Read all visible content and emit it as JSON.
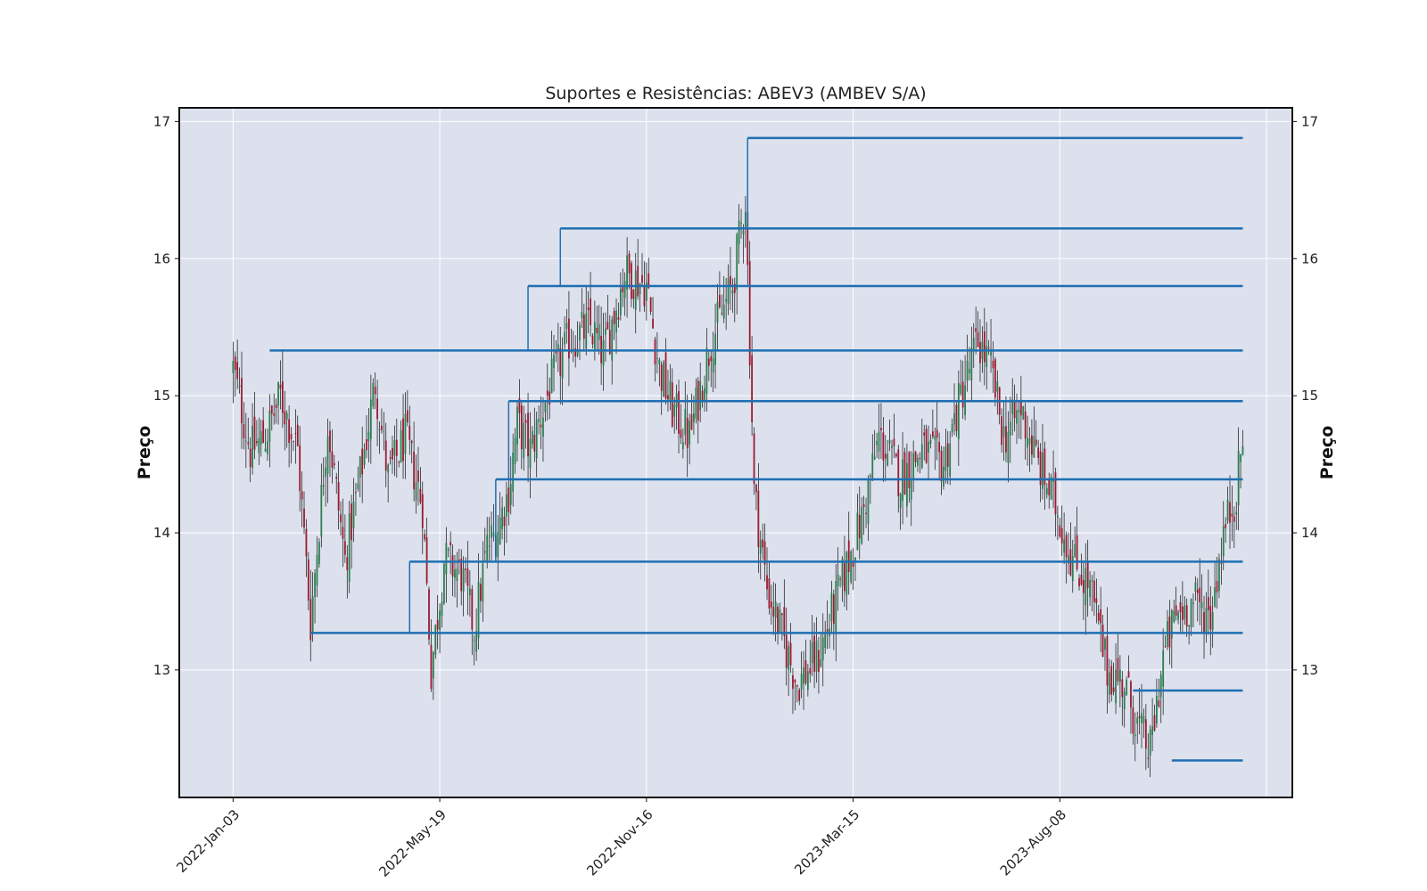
{
  "chart_data": {
    "type": "candlestick",
    "title": "Suportes e Resistências: ABEV3 (AMBEV S/A)",
    "ylabel_left": "Preço",
    "ylabel_right": "Preço",
    "xlabel": "",
    "ylim": [
      12.07,
      17.1
    ],
    "x_tick_labels": [
      "2022-Jan-03",
      "2022-May-19",
      "2022-Nov-16",
      "2023-Mar-15",
      "2023-Aug-08"
    ],
    "x_tick_index": [
      0,
      96,
      192,
      288,
      384
    ],
    "x_range": [
      -25,
      492
    ],
    "y_ticks": [
      13,
      14,
      15,
      16,
      17
    ],
    "grid": true,
    "background": "#dce1ed",
    "colors": {
      "up": "#2e7d4f",
      "down": "#9b1b30",
      "wick": "#111111",
      "level": "#1f6fb2"
    },
    "n_bars": 470,
    "close_anchors": [
      [
        0,
        15.2
      ],
      [
        8,
        14.6
      ],
      [
        15,
        14.7
      ],
      [
        22,
        15.0
      ],
      [
        30,
        14.6
      ],
      [
        36,
        13.35
      ],
      [
        44,
        14.8
      ],
      [
        52,
        13.8
      ],
      [
        60,
        14.5
      ],
      [
        66,
        15.1
      ],
      [
        72,
        14.4
      ],
      [
        80,
        14.7
      ],
      [
        88,
        14.2
      ],
      [
        92,
        13.0
      ],
      [
        98,
        13.8
      ],
      [
        106,
        13.7
      ],
      [
        112,
        13.3
      ],
      [
        118,
        13.9
      ],
      [
        122,
        14.0
      ],
      [
        128,
        14.3
      ],
      [
        132,
        14.8
      ],
      [
        138,
        14.6
      ],
      [
        148,
        15.1
      ],
      [
        156,
        15.4
      ],
      [
        166,
        15.5
      ],
      [
        172,
        15.3
      ],
      [
        182,
        15.9
      ],
      [
        192,
        15.8
      ],
      [
        198,
        15.2
      ],
      [
        204,
        14.9
      ],
      [
        212,
        14.7
      ],
      [
        222,
        15.4
      ],
      [
        232,
        15.8
      ],
      [
        238,
        16.45
      ],
      [
        242,
        14.3
      ],
      [
        248,
        13.6
      ],
      [
        254,
        13.3
      ],
      [
        262,
        12.9
      ],
      [
        272,
        13.1
      ],
      [
        280,
        13.5
      ],
      [
        292,
        14.1
      ],
      [
        300,
        14.7
      ],
      [
        310,
        14.4
      ],
      [
        320,
        14.6
      ],
      [
        330,
        14.5
      ],
      [
        338,
        15.0
      ],
      [
        346,
        15.4
      ],
      [
        352,
        15.2
      ],
      [
        358,
        14.7
      ],
      [
        366,
        14.9
      ],
      [
        374,
        14.5
      ],
      [
        382,
        14.2
      ],
      [
        390,
        13.8
      ],
      [
        398,
        13.6
      ],
      [
        406,
        13.0
      ],
      [
        414,
        12.9
      ],
      [
        420,
        12.6
      ],
      [
        426,
        12.4
      ],
      [
        432,
        13.1
      ],
      [
        438,
        13.4
      ],
      [
        446,
        13.5
      ],
      [
        454,
        13.4
      ],
      [
        460,
        14.0
      ],
      [
        466,
        14.3
      ],
      [
        469,
        14.7
      ]
    ],
    "sr_levels": [
      {
        "price": 16.88,
        "start_index": 239
      },
      {
        "price": 16.22,
        "start_index": 152
      },
      {
        "price": 15.8,
        "start_index": 137
      },
      {
        "price": 15.33,
        "start_index": 17
      },
      {
        "price": 14.96,
        "start_index": 128
      },
      {
        "price": 14.39,
        "start_index": 122
      },
      {
        "price": 13.79,
        "start_index": 82
      },
      {
        "price": 13.27,
        "start_index": 36
      },
      {
        "price": 12.85,
        "start_index": 418
      },
      {
        "price": 12.34,
        "start_index": 436
      }
    ],
    "sr_end_index": 469
  }
}
